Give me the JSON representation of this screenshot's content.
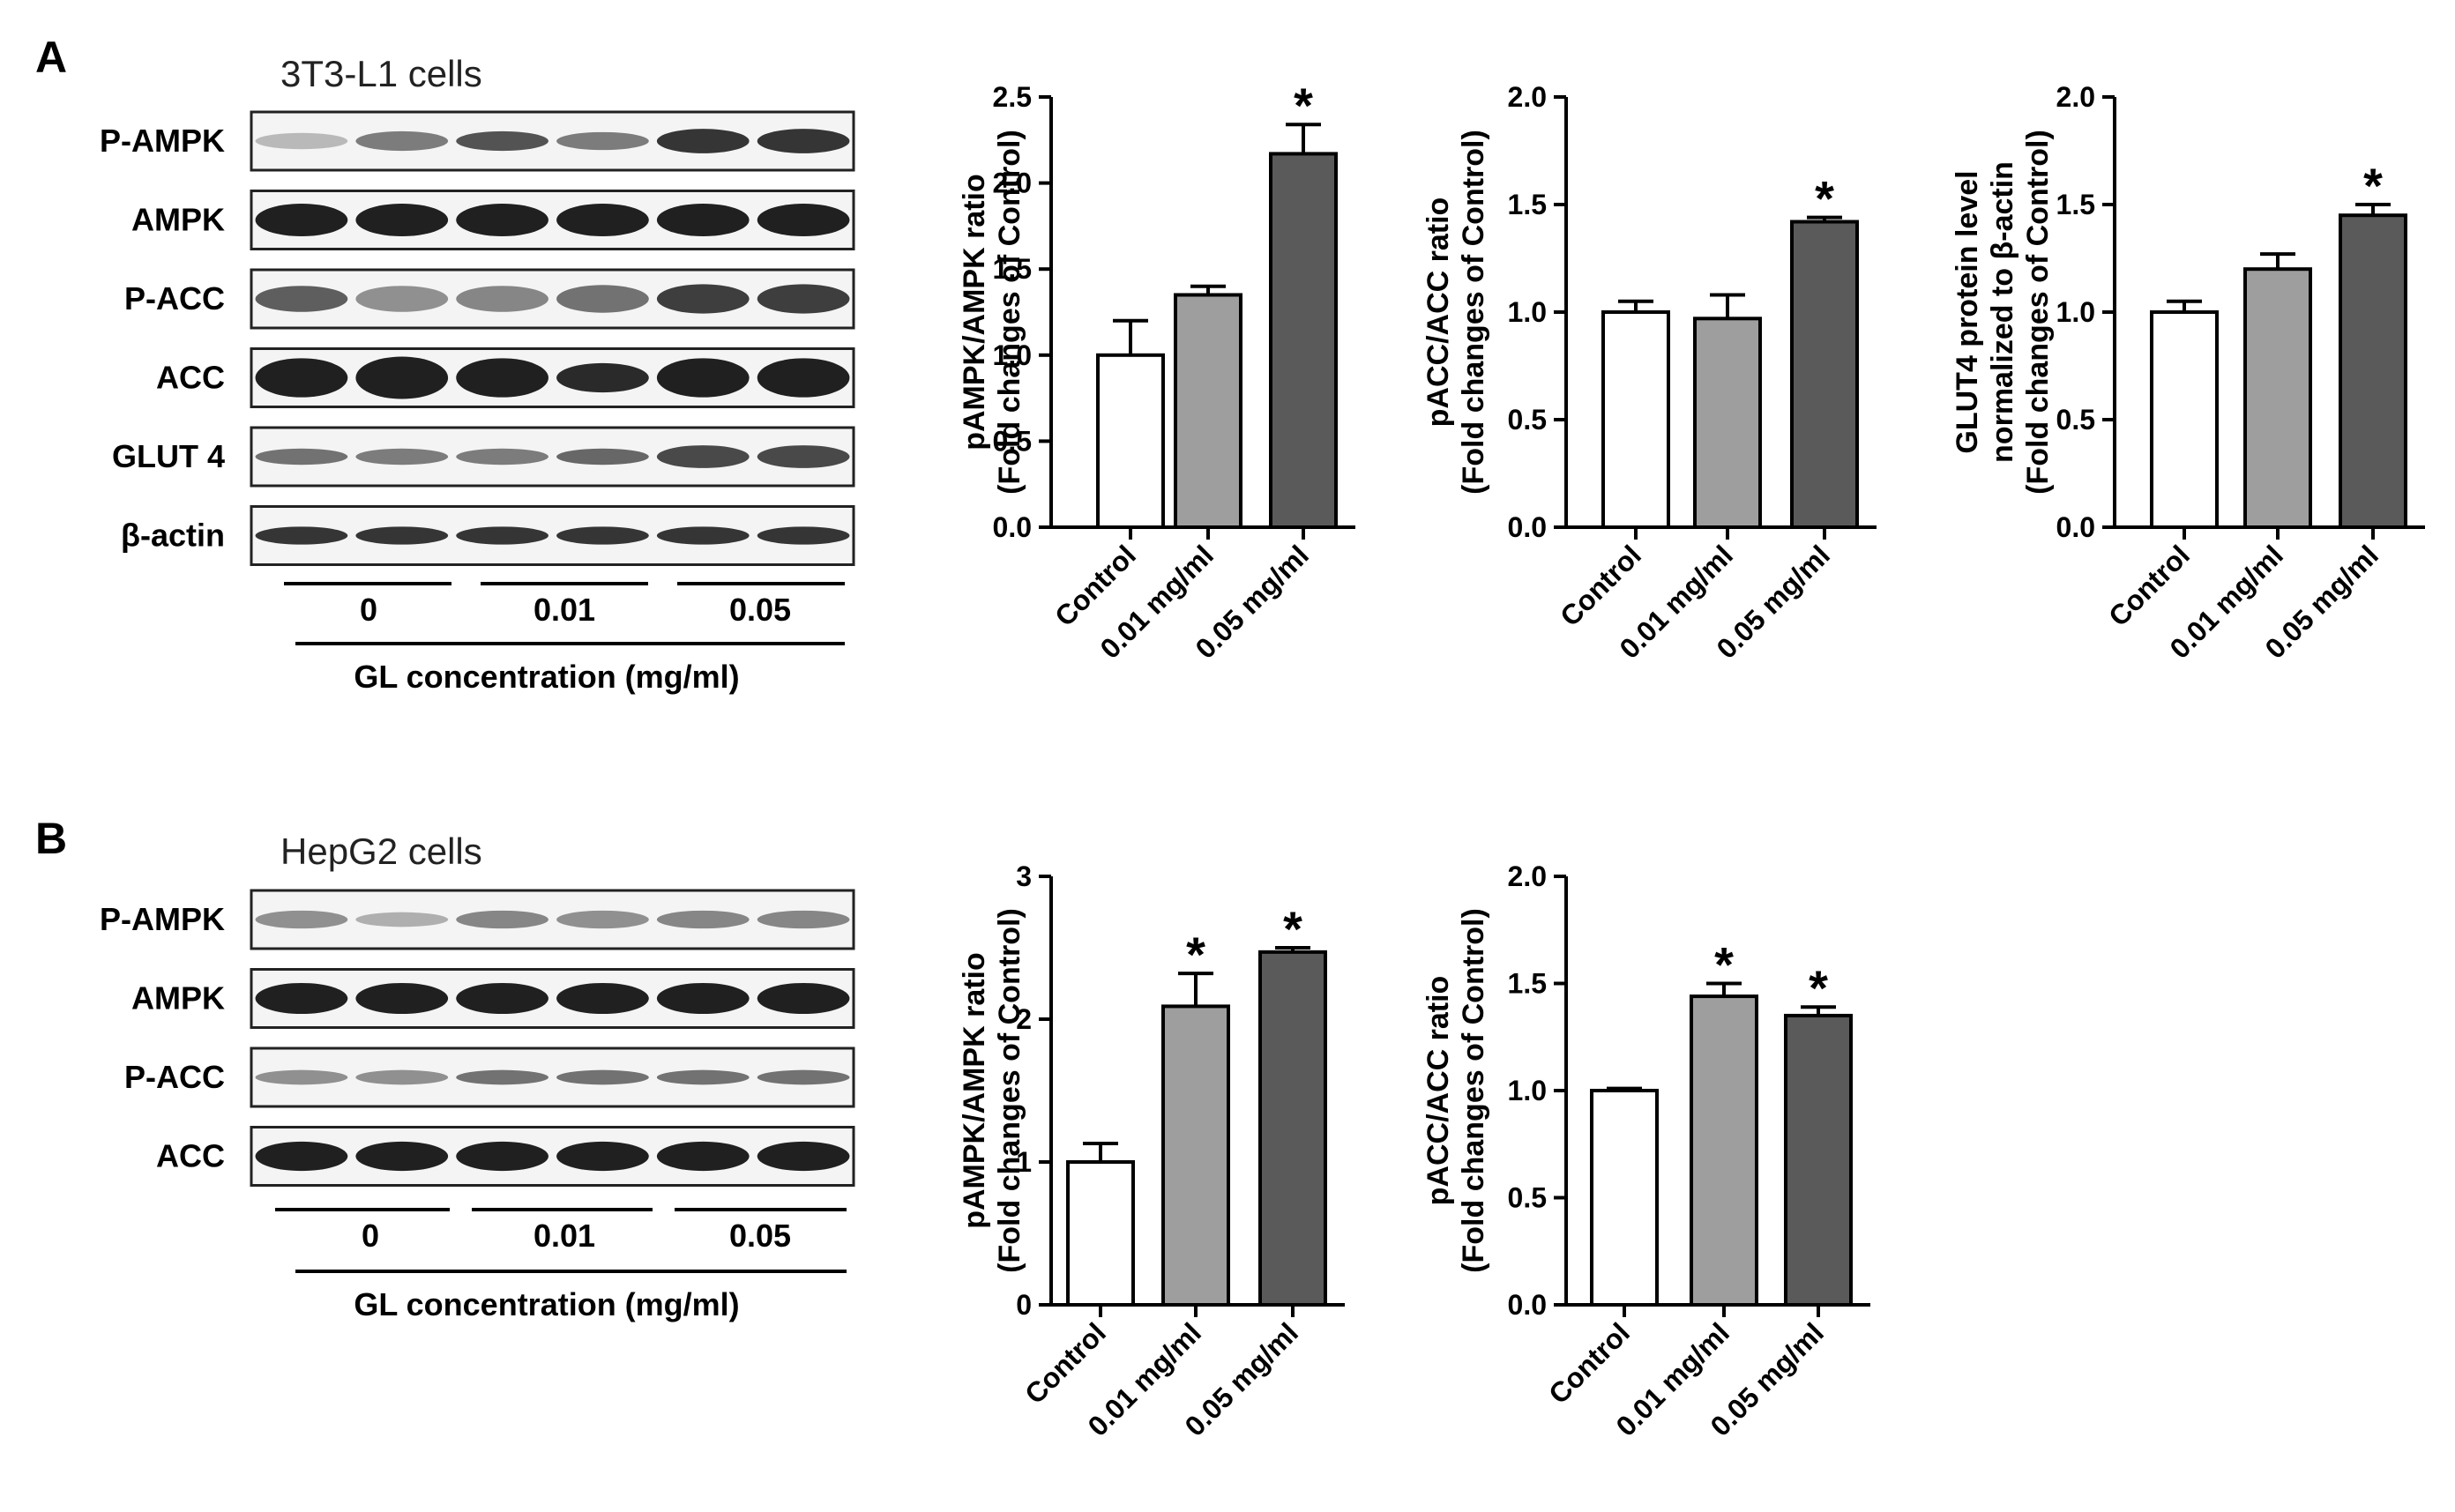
{
  "panels": {
    "A": {
      "letter": "A",
      "cell_line": "3T3-L1 cells",
      "bands": [
        "P-AMPK",
        "AMPK",
        "P-ACC",
        "ACC",
        "GLUT 4",
        "β-actin"
      ],
      "concentrations": [
        "0",
        "0.01",
        "0.05"
      ],
      "axis_label": "GL concentration (mg/ml)"
    },
    "B": {
      "letter": "B",
      "cell_line": "HepG2 cells",
      "bands": [
        "P-AMPK",
        "AMPK",
        "P-ACC",
        "ACC"
      ],
      "concentrations": [
        "0",
        "0.01",
        "0.05"
      ],
      "axis_label": "GL concentration (mg/ml)"
    }
  },
  "colors": {
    "control": "#ffffff",
    "low": "#9e9e9e",
    "high": "#5a5a5a",
    "axis": "#000000"
  },
  "chart_data": [
    {
      "type": "bar",
      "panel": "A",
      "categories": [
        "Control",
        "0.01 mg/ml",
        "0.05 mg/ml"
      ],
      "values": [
        1.0,
        1.35,
        2.17
      ],
      "errors": [
        0.2,
        0.05,
        0.17
      ],
      "significant": [
        false,
        false,
        true
      ],
      "ylabel_lines": [
        "pAMPK/AMPK ratio",
        "(Fold changes of Control)"
      ],
      "ylim": [
        0,
        2.5
      ],
      "yticks": [
        0.0,
        0.5,
        1.0,
        1.5,
        2.0,
        2.5
      ],
      "yticklabels": [
        "0.0",
        "0.5",
        "1.0",
        "1.5",
        "2.0",
        "2.5"
      ]
    },
    {
      "type": "bar",
      "panel": "A",
      "categories": [
        "Control",
        "0.01 mg/ml",
        "0.05 mg/ml"
      ],
      "values": [
        1.0,
        0.97,
        1.42
      ],
      "errors": [
        0.05,
        0.11,
        0.02
      ],
      "significant": [
        false,
        false,
        true
      ],
      "ylabel_lines": [
        "pACC/ACC ratio",
        "(Fold changes of Control)"
      ],
      "ylim": [
        0,
        2.0
      ],
      "yticks": [
        0.0,
        0.5,
        1.0,
        1.5,
        2.0
      ],
      "yticklabels": [
        "0.0",
        "0.5",
        "1.0",
        "1.5",
        "2.0"
      ]
    },
    {
      "type": "bar",
      "panel": "A",
      "categories": [
        "Control",
        "0.01 mg/ml",
        "0.05 mg/ml"
      ],
      "values": [
        1.0,
        1.2,
        1.45
      ],
      "errors": [
        0.05,
        0.07,
        0.05
      ],
      "significant": [
        false,
        false,
        true
      ],
      "ylabel_lines": [
        "GLUT4 protein level",
        "normalized to β-actin",
        "(Fold changes of Control)"
      ],
      "ylim": [
        0,
        2.0
      ],
      "yticks": [
        0.0,
        0.5,
        1.0,
        1.5,
        2.0
      ],
      "yticklabels": [
        "0.0",
        "0.5",
        "1.0",
        "1.5",
        "2.0"
      ]
    },
    {
      "type": "bar",
      "panel": "B",
      "categories": [
        "Control",
        "0.01 mg/ml",
        "0.05 mg/ml"
      ],
      "values": [
        1.0,
        2.09,
        2.47
      ],
      "errors": [
        0.13,
        0.23,
        0.03
      ],
      "significant": [
        false,
        true,
        true
      ],
      "ylabel_lines": [
        "pAMPK/AMPK ratio",
        "(Fold changes of Control)"
      ],
      "ylim": [
        0,
        3
      ],
      "yticks": [
        0,
        1,
        2,
        3
      ],
      "yticklabels": [
        "0",
        "1",
        "2",
        "3"
      ]
    },
    {
      "type": "bar",
      "panel": "B",
      "categories": [
        "Control",
        "0.01 mg/ml",
        "0.05 mg/ml"
      ],
      "values": [
        1.0,
        1.44,
        1.35
      ],
      "errors": [
        0.01,
        0.06,
        0.04
      ],
      "significant": [
        false,
        true,
        true
      ],
      "ylabel_lines": [
        "pACC/ACC ratio",
        "(Fold changes of Control)"
      ],
      "ylim": [
        0,
        2.0
      ],
      "yticks": [
        0.0,
        0.5,
        1.0,
        1.5,
        2.0
      ],
      "yticklabels": [
        "0.0",
        "0.5",
        "1.0",
        "1.5",
        "2.0"
      ]
    }
  ]
}
